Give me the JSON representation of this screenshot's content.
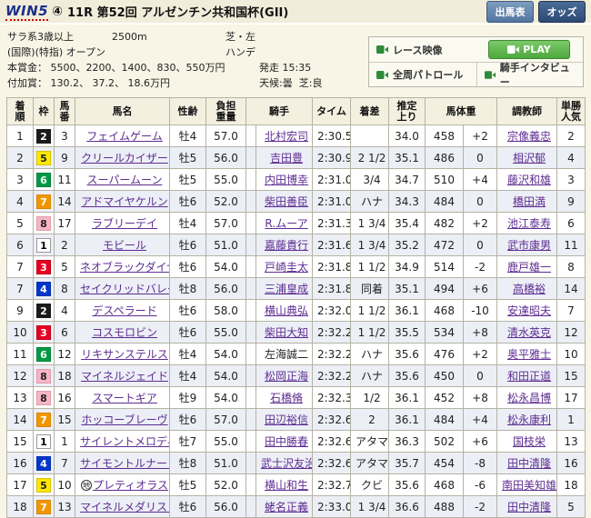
{
  "header": {
    "win5_label": "WIN5",
    "race_badge": "④",
    "title": "11R 第52回 アルゼンチン共和国杯(GII)",
    "buttons": {
      "entries": "出馬表",
      "odds": "オッズ"
    }
  },
  "race_info": {
    "class": "サラ系3歳以上",
    "distance": "2500m",
    "course": "芝・左",
    "conditions": "(国際)(特指) オープン",
    "handicap": "ハンデ",
    "prize": "本賞金： 5500、2200、1400、830、550万円",
    "start_time": "発走 15:35",
    "added_prize": "付加賞： 130.2、 37.2、 18.6万円",
    "weather": "天候:曇",
    "turf": "芝:良"
  },
  "video_panel": {
    "race_video": "レース映像",
    "play": "PLAY",
    "patrol": "全周パトロール",
    "interview": "騎手インタビュー"
  },
  "table": {
    "headers": {
      "pos": "着\n順",
      "frame": "枠",
      "horse_no": "馬\n番",
      "name": "馬名",
      "sex_age": "性齢",
      "weight": "負担\n重量",
      "jockey": "騎手",
      "time": "タイム",
      "margin": "着差",
      "last3f": "推定\n上り",
      "body_weight": "馬体重",
      "trainer": "調教師",
      "fav": "単勝\n人気"
    },
    "rows": [
      {
        "pos": "1",
        "frame": "2",
        "horse_no": "3",
        "mark": "",
        "horse": "フェイムゲーム",
        "sex_age": "牡4",
        "weight": "57.0",
        "jockey": "北村宏司",
        "jockey_link": true,
        "time": "2:30.5",
        "margin": "",
        "last3f": "34.0",
        "body_weight": "458",
        "weight_diff": "+2",
        "trainer": "宗像義忠",
        "fav": "2"
      },
      {
        "pos": "2",
        "frame": "5",
        "horse_no": "9",
        "mark": "",
        "horse": "クリールカイザー",
        "sex_age": "牡5",
        "weight": "56.0",
        "jockey": "吉田豊",
        "jockey_link": true,
        "time": "2:30.9",
        "margin": "2 1/2",
        "last3f": "35.1",
        "body_weight": "486",
        "weight_diff": "0",
        "trainer": "相沢郁",
        "fav": "4"
      },
      {
        "pos": "3",
        "frame": "6",
        "horse_no": "11",
        "mark": "",
        "horse": "スーパームーン",
        "sex_age": "牡5",
        "weight": "55.0",
        "jockey": "内田博幸",
        "jockey_link": true,
        "time": "2:31.0",
        "margin": "3/4",
        "last3f": "34.7",
        "body_weight": "510",
        "weight_diff": "+4",
        "trainer": "藤沢和雄",
        "fav": "3"
      },
      {
        "pos": "4",
        "frame": "7",
        "horse_no": "14",
        "mark": "",
        "horse": "アドマイヤケルン",
        "sex_age": "牡6",
        "weight": "52.0",
        "jockey": "柴田善臣",
        "jockey_link": true,
        "time": "2:31.0",
        "margin": "ハナ",
        "last3f": "34.3",
        "body_weight": "484",
        "weight_diff": "0",
        "trainer": "橋田満",
        "fav": "9"
      },
      {
        "pos": "5",
        "frame": "8",
        "horse_no": "17",
        "mark": "",
        "horse": "ラブリーデイ",
        "sex_age": "牡4",
        "weight": "57.0",
        "jockey": "R.ムーア",
        "jockey_link": true,
        "time": "2:31.3",
        "margin": "1 3/4",
        "last3f": "35.4",
        "body_weight": "482",
        "weight_diff": "+2",
        "trainer": "池江泰寿",
        "fav": "6"
      },
      {
        "pos": "6",
        "frame": "1",
        "horse_no": "2",
        "mark": "",
        "horse": "モビール",
        "sex_age": "牡6",
        "weight": "51.0",
        "jockey": "嘉藤貴行",
        "jockey_link": true,
        "time": "2:31.6",
        "margin": "1 3/4",
        "last3f": "35.2",
        "body_weight": "472",
        "weight_diff": "0",
        "trainer": "武市康男",
        "fav": "11"
      },
      {
        "pos": "7",
        "frame": "3",
        "horse_no": "5",
        "mark": "",
        "horse": "ネオブラックダイヤ",
        "sex_age": "牡6",
        "weight": "54.0",
        "jockey": "戸崎圭太",
        "jockey_link": true,
        "time": "2:31.8",
        "margin": "1 1/2",
        "last3f": "34.9",
        "body_weight": "514",
        "weight_diff": "-2",
        "trainer": "鹿戸雄一",
        "fav": "8"
      },
      {
        "pos": "7",
        "frame": "4",
        "horse_no": "8",
        "mark": "",
        "horse": "セイクリッドバレー",
        "sex_age": "牡8",
        "weight": "56.0",
        "jockey": "三浦皇成",
        "jockey_link": true,
        "time": "2:31.8",
        "margin": "同着",
        "last3f": "35.1",
        "body_weight": "494",
        "weight_diff": "+6",
        "trainer": "高橋裕",
        "fav": "14"
      },
      {
        "pos": "9",
        "frame": "2",
        "horse_no": "4",
        "mark": "",
        "horse": "デスペラード",
        "sex_age": "牡6",
        "weight": "58.0",
        "jockey": "横山典弘",
        "jockey_link": true,
        "time": "2:32.0",
        "margin": "1 1/2",
        "last3f": "36.1",
        "body_weight": "468",
        "weight_diff": "-10",
        "trainer": "安達昭夫",
        "fav": "7"
      },
      {
        "pos": "10",
        "frame": "3",
        "horse_no": "6",
        "mark": "",
        "horse": "コスモロビン",
        "sex_age": "牡6",
        "weight": "55.0",
        "jockey": "柴田大知",
        "jockey_link": true,
        "time": "2:32.2",
        "margin": "1 1/2",
        "last3f": "35.5",
        "body_weight": "534",
        "weight_diff": "+8",
        "trainer": "清水英克",
        "fav": "12"
      },
      {
        "pos": "11",
        "frame": "6",
        "horse_no": "12",
        "mark": "",
        "horse": "リキサンステルス",
        "sex_age": "牡4",
        "weight": "54.0",
        "jockey": "左海誠二",
        "jockey_link": false,
        "time": "2:32.2",
        "margin": "ハナ",
        "last3f": "35.6",
        "body_weight": "476",
        "weight_diff": "+2",
        "trainer": "奥平雅士",
        "fav": "10"
      },
      {
        "pos": "12",
        "frame": "8",
        "horse_no": "18",
        "mark": "",
        "horse": "マイネルジェイド",
        "sex_age": "牡4",
        "weight": "54.0",
        "jockey": "松岡正海",
        "jockey_link": true,
        "time": "2:32.2",
        "margin": "ハナ",
        "last3f": "35.6",
        "body_weight": "450",
        "weight_diff": "0",
        "trainer": "和田正道",
        "fav": "15"
      },
      {
        "pos": "13",
        "frame": "8",
        "horse_no": "16",
        "mark": "",
        "horse": "スマートギア",
        "sex_age": "牡9",
        "weight": "54.0",
        "jockey": "石橋脩",
        "jockey_link": true,
        "time": "2:32.3",
        "margin": "1/2",
        "last3f": "36.1",
        "body_weight": "452",
        "weight_diff": "+8",
        "trainer": "松永昌博",
        "fav": "17"
      },
      {
        "pos": "14",
        "frame": "7",
        "horse_no": "15",
        "mark": "",
        "horse": "ホッコーブレーヴ",
        "sex_age": "牡6",
        "weight": "57.0",
        "jockey": "田辺裕信",
        "jockey_link": true,
        "time": "2:32.6",
        "margin": "2",
        "last3f": "36.1",
        "body_weight": "484",
        "weight_diff": "+4",
        "trainer": "松永康利",
        "fav": "1"
      },
      {
        "pos": "15",
        "frame": "1",
        "horse_no": "1",
        "mark": "",
        "horse": "サイレントメロディ",
        "sex_age": "牡7",
        "weight": "55.0",
        "jockey": "田中勝春",
        "jockey_link": true,
        "time": "2:32.6",
        "margin": "アタマ",
        "last3f": "36.3",
        "body_weight": "502",
        "weight_diff": "+6",
        "trainer": "国枝栄",
        "fav": "13"
      },
      {
        "pos": "16",
        "frame": "4",
        "horse_no": "7",
        "mark": "",
        "horse": "サイモントルナーレ",
        "sex_age": "牡8",
        "weight": "51.0",
        "jockey": "武士沢友治",
        "jockey_link": true,
        "time": "2:32.6",
        "margin": "アタマ",
        "last3f": "35.7",
        "body_weight": "454",
        "weight_diff": "-8",
        "trainer": "田中清隆",
        "fav": "16"
      },
      {
        "pos": "17",
        "frame": "5",
        "horse_no": "10",
        "mark": "地",
        "horse": "プレティオラス",
        "sex_age": "牡5",
        "weight": "52.0",
        "jockey": "横山和生",
        "jockey_link": true,
        "time": "2:32.7",
        "margin": "クビ",
        "last3f": "35.6",
        "body_weight": "468",
        "weight_diff": "-6",
        "trainer": "南田美知雄",
        "fav": "18"
      },
      {
        "pos": "18",
        "frame": "7",
        "horse_no": "13",
        "mark": "",
        "horse": "マイネルメダリスト",
        "sex_age": "牡6",
        "weight": "56.0",
        "jockey": "蛯名正義",
        "jockey_link": true,
        "time": "2:33.0",
        "margin": "1 3/4",
        "last3f": "36.6",
        "body_weight": "488",
        "weight_diff": "-2",
        "trainer": "田中清隆",
        "fav": "5"
      }
    ]
  },
  "frame_colors": {
    "1": {
      "bg": "#ffffff",
      "fg": "#000000",
      "border": "#999999"
    },
    "2": {
      "bg": "#1a1a1a",
      "fg": "#ffffff",
      "border": "#1a1a1a"
    },
    "3": {
      "bg": "#e60021",
      "fg": "#ffffff",
      "border": "#c00018"
    },
    "4": {
      "bg": "#0037c8",
      "fg": "#ffffff",
      "border": "#0030b0"
    },
    "5": {
      "bg": "#ffe800",
      "fg": "#222222",
      "border": "#d6c300"
    },
    "6": {
      "bg": "#009a44",
      "fg": "#ffffff",
      "border": "#00813a"
    },
    "7": {
      "bg": "#f29600",
      "fg": "#ffffff",
      "border": "#d88600"
    },
    "8": {
      "bg": "#f6b6c4",
      "fg": "#222222",
      "border": "#e09aae"
    }
  }
}
